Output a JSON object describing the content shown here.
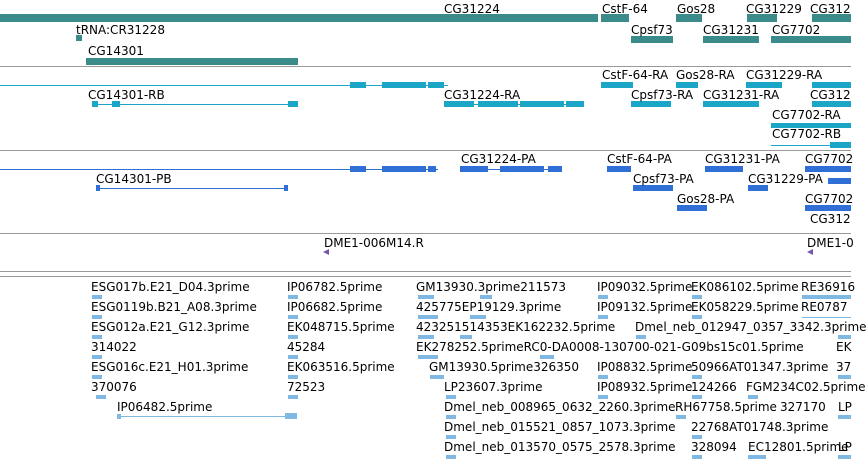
{
  "colors": {
    "gene": "#3a8b89",
    "transcript": "#1ba5c7",
    "protein": "#2f6fd6",
    "rnai": "#7755a8",
    "est": "#7fb8e2",
    "separator": "#9a9a9a"
  },
  "genes": [
    {
      "label": "CG31224"
    },
    {
      "label": "CstF-64"
    },
    {
      "label": "Gos28"
    },
    {
      "label": "CG31229"
    },
    {
      "label": "CG312"
    },
    {
      "label": "tRNA:CR31228"
    },
    {
      "label": "Cpsf73"
    },
    {
      "label": "CG31231"
    },
    {
      "label": "CG7702"
    },
    {
      "label": "CG14301"
    }
  ],
  "transcripts": [
    {
      "label": "CstF-64-RA"
    },
    {
      "label": "Gos28-RA"
    },
    {
      "label": "CG31229-RA"
    },
    {
      "label": "CG14301-RB"
    },
    {
      "label": "CG31224-RA"
    },
    {
      "label": "Cpsf73-RA"
    },
    {
      "label": "CG31231-RA"
    },
    {
      "label": "CG312"
    },
    {
      "label": "CG7702-RA"
    },
    {
      "label": "CG7702-RB"
    }
  ],
  "proteins": [
    {
      "label": "CG31224-PA"
    },
    {
      "label": "CstF-64-PA"
    },
    {
      "label": "CG31231-PA"
    },
    {
      "label": "CG7702"
    },
    {
      "label": "CG14301-PB"
    },
    {
      "label": "Cpsf73-PA"
    },
    {
      "label": "CG31229-PA"
    },
    {
      "label": "Gos28-PA"
    },
    {
      "label": "CG7702"
    },
    {
      "label": "CG312"
    }
  ],
  "rnai": [
    {
      "label": "DME1-006M14.R"
    },
    {
      "label": "DME1-0"
    }
  ],
  "ests": [
    {
      "label": "ESG017b.E21_D04.3prime"
    },
    {
      "label": "ESG0119b.B21_A08.3prime"
    },
    {
      "label": "ESG012a.E21_G12.3prime"
    },
    {
      "label": "314022"
    },
    {
      "label": "ESG016c.E21_H01.3prime"
    },
    {
      "label": "370076"
    },
    {
      "label": "IP06482.5prime"
    },
    {
      "label": "IP06782.5prime"
    },
    {
      "label": "IP06682.5prime"
    },
    {
      "label": "EK048715.5prime"
    },
    {
      "label": "45284"
    },
    {
      "label": "EK063516.5prime"
    },
    {
      "label": "72523"
    },
    {
      "label": "GM13930.3prime211573"
    },
    {
      "label": "425775EP19129.3prime"
    },
    {
      "label": "423251514353EK162232.5prime"
    },
    {
      "label": "EK278252.5primeRC0-DA0008-130700-021-G09bs15c01.5prime"
    },
    {
      "label": "GM13930.5prime326350"
    },
    {
      "label": "LP23607.3prime"
    },
    {
      "label": "Dmel_neb_008965_0632_2260.3prime"
    },
    {
      "label": "Dmel_neb_015521_0857_1073.3prime"
    },
    {
      "label": "Dmel_neb_013570_0575_2578.3prime"
    },
    {
      "label": "IP09032.5prime"
    },
    {
      "label": "IP09132.5prime"
    },
    {
      "label": "Dmel_neb_012947_0357_3342.3prime"
    },
    {
      "label": "IP08832.5prime"
    },
    {
      "label": "IP08932.5prime"
    },
    {
      "label": "EK086102.5prime"
    },
    {
      "label": "EK058229.5prime"
    },
    {
      "label": "50966AT01347.3prime"
    },
    {
      "label": "124266"
    },
    {
      "label": "FGM234C02.5prime"
    },
    {
      "label": "RH67758.5prime"
    },
    {
      "label": "327170"
    },
    {
      "label": "22768AT01748.3prime"
    },
    {
      "label": "328094"
    },
    {
      "label": "EC12801.5prime"
    },
    {
      "label": "RE36916"
    },
    {
      "label": "RE0787"
    },
    {
      "label": "EK"
    },
    {
      "label": "37"
    },
    {
      "label": "LP"
    },
    {
      "label": "LP"
    }
  ]
}
